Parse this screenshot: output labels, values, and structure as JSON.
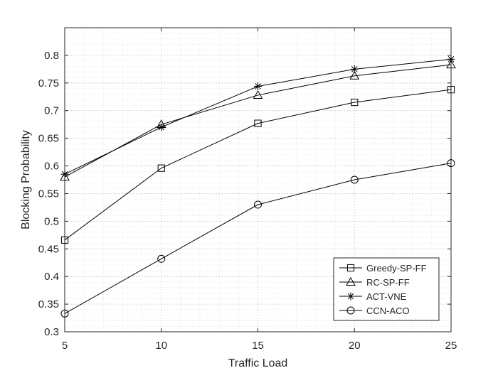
{
  "chart_data": {
    "type": "line",
    "title": "",
    "xlabel": "Traffic Load",
    "ylabel": "Blocking Probability",
    "x": [
      5,
      10,
      15,
      20,
      25
    ],
    "xlim": [
      5,
      25
    ],
    "ylim": [
      0.3,
      0.85
    ],
    "xticks": [
      5,
      10,
      15,
      20,
      25
    ],
    "xtick_labels": [
      "5",
      "10",
      "15",
      "20",
      "25"
    ],
    "yticks": [
      0.3,
      0.35,
      0.4,
      0.45,
      0.5,
      0.55,
      0.6,
      0.65,
      0.7,
      0.75,
      0.8
    ],
    "ytick_labels": [
      "0.3",
      "0.35",
      "0.4",
      "0.45",
      "0.5",
      "0.55",
      "0.6",
      "0.65",
      "0.7",
      "0.75",
      "0.8"
    ],
    "grid": true,
    "minor_grid": true,
    "legend_position": "bottom-right",
    "series": [
      {
        "name": "Greedy-SP-FF",
        "marker": "square",
        "color": "#000000",
        "values": [
          0.466,
          0.596,
          0.677,
          0.715,
          0.738
        ]
      },
      {
        "name": "RC-SP-FF",
        "marker": "triangle",
        "color": "#000000",
        "values": [
          0.58,
          0.675,
          0.728,
          0.763,
          0.783
        ]
      },
      {
        "name": "ACT-VNE",
        "marker": "asterisk",
        "color": "#000000",
        "values": [
          0.585,
          0.67,
          0.744,
          0.775,
          0.793
        ]
      },
      {
        "name": "CCN-ACO",
        "marker": "circle",
        "color": "#000000",
        "values": [
          0.333,
          0.432,
          0.53,
          0.575,
          0.605
        ]
      }
    ]
  }
}
